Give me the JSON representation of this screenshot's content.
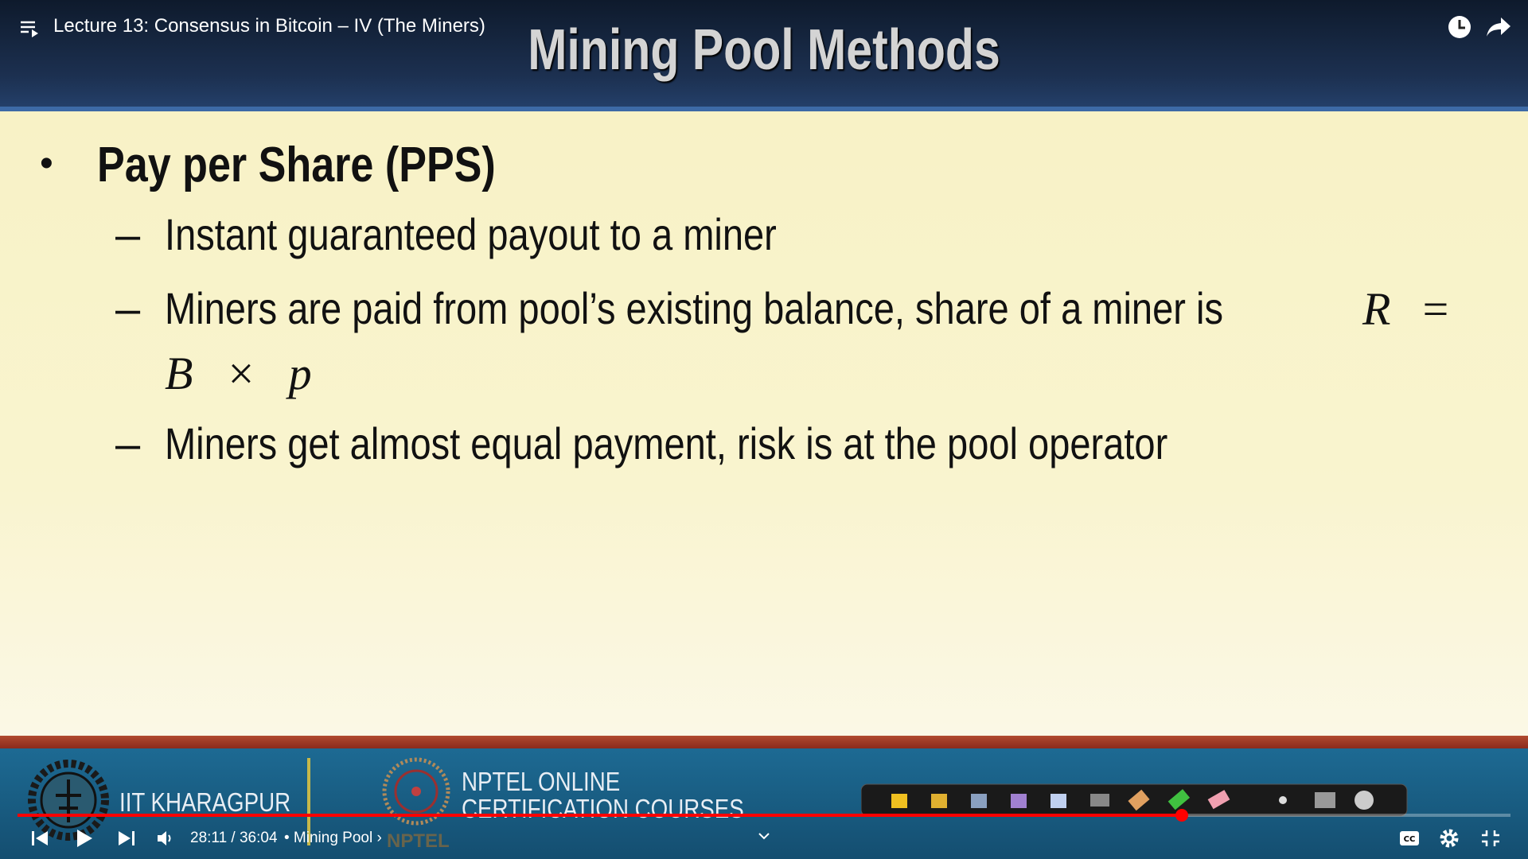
{
  "player": {
    "video_title": "Lecture 13: Consensus in Bitcoin – IV (The Miners)",
    "time": "28:11 / 36:04",
    "chapter": "• Mining Pool ›",
    "progress": 78
  },
  "slide": {
    "title": "Mining Pool Methods",
    "bullet": "Pay per Share (PPS)",
    "subbullets": [
      "Instant guaranteed payout to a miner",
      "Miners are paid from pool’s existing balance, share of a miner is",
      "Miners get almost equal payment, risk is at the pool operator"
    ],
    "formula": [
      "R =",
      "B × p"
    ],
    "dash": "–",
    "bullet_mark": "•"
  },
  "footer": {
    "institute": "IIT KHARAGPUR",
    "program_line1": "NPTEL ONLINE",
    "program_line2": "CERTIFICATION COURSES",
    "brand": "NPTEL"
  }
}
